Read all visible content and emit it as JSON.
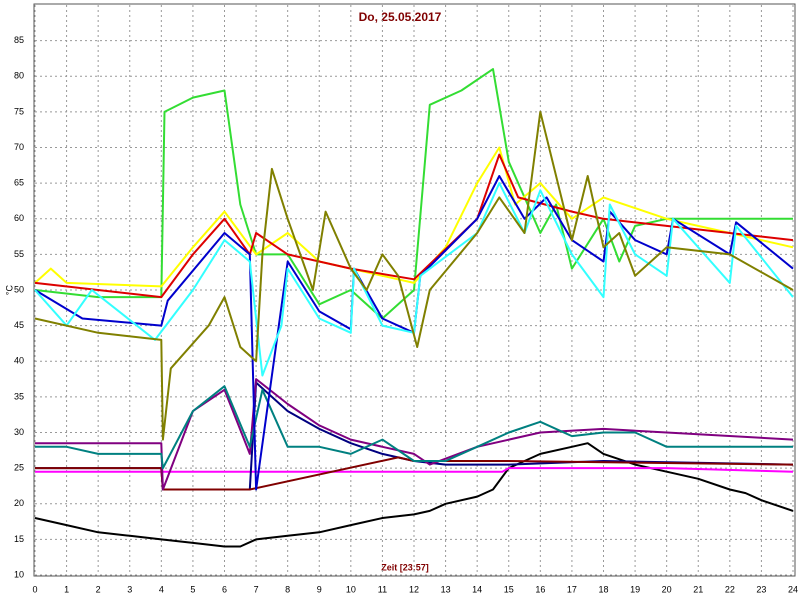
{
  "chart_data": {
    "type": "line",
    "title": "Do, 25.05.2017",
    "x_label": "Zeit [23:57]",
    "y_label": "°C",
    "xlim": [
      0,
      24
    ],
    "xticks": [
      0,
      1,
      2,
      3,
      4,
      5,
      6,
      7,
      8,
      9,
      10,
      11,
      12,
      13,
      14,
      15,
      16,
      17,
      18,
      19,
      20,
      21,
      22,
      23,
      24
    ],
    "ylim": [
      10,
      90
    ],
    "yticks": [
      10,
      15,
      20,
      25,
      30,
      35,
      40,
      45,
      50,
      55,
      60,
      65,
      70,
      75,
      80,
      85
    ],
    "grid": true,
    "series": [
      {
        "color": "#000000",
        "x": [
          0,
          1,
          2,
          3,
          4,
          5,
          6,
          6.5,
          7,
          8,
          9,
          10,
          11,
          12,
          12.5,
          13,
          14,
          14.5,
          15,
          16,
          17,
          17.5,
          18,
          19,
          20,
          21,
          22,
          22.5,
          23,
          24
        ],
        "values": [
          18,
          17,
          16,
          15.5,
          15,
          14.5,
          14,
          14,
          15,
          15.5,
          16,
          17,
          18,
          18.5,
          19,
          20,
          21,
          22,
          25,
          27,
          28,
          28.5,
          27,
          25.5,
          24.5,
          23.5,
          22,
          21.5,
          20.5,
          19
        ]
      },
      {
        "color": "#ff00ff",
        "x": [
          0,
          4,
          8,
          12,
          14.8,
          15,
          20,
          24
        ],
        "values": [
          24.5,
          24.5,
          24.5,
          24.5,
          24.5,
          25,
          25,
          24.5
        ]
      },
      {
        "color": "#000080",
        "x": [
          0,
          4,
          4.05,
          6,
          6.8,
          7,
          8,
          9,
          10,
          11,
          12,
          13,
          15,
          18,
          24
        ],
        "values": [
          25,
          25,
          22,
          22,
          22,
          37,
          33,
          30.5,
          28.5,
          27,
          26,
          25.5,
          25.5,
          26,
          25.5
        ]
      },
      {
        "color": "#800000",
        "x": [
          0,
          4,
          4.05,
          6.8,
          11.5,
          12,
          15,
          24
        ],
        "values": [
          25,
          25,
          22,
          22,
          26.5,
          26,
          26,
          25.5
        ]
      },
      {
        "color": "#800080",
        "x": [
          0,
          4,
          4.05,
          5,
          6,
          6.8,
          7,
          8,
          9,
          10,
          11,
          12,
          12.5,
          14,
          16,
          18,
          20,
          24
        ],
        "values": [
          28.5,
          28.5,
          22,
          33,
          36,
          27,
          37.5,
          34,
          31,
          29,
          28,
          27,
          25.5,
          28,
          30,
          30.5,
          30,
          29
        ]
      },
      {
        "color": "#008080",
        "x": [
          0,
          1,
          2,
          4,
          4.05,
          5,
          6,
          6.8,
          7.2,
          8,
          9,
          10,
          11,
          12,
          13,
          14,
          15,
          16,
          17,
          18,
          19,
          20,
          24
        ],
        "values": [
          28,
          28,
          27,
          27,
          25,
          33,
          36.5,
          28,
          36,
          28,
          28,
          27,
          29,
          26,
          26,
          28,
          30,
          31.5,
          29.5,
          30,
          30,
          28,
          28
        ]
      },
      {
        "color": "#33dd33",
        "x": [
          0,
          2,
          4,
          4.1,
          5,
          6,
          6.5,
          7,
          8,
          9,
          10,
          11,
          12,
          12.5,
          13.5,
          14.5,
          15,
          16,
          16.5,
          17,
          18,
          18.5,
          19,
          20,
          24
        ],
        "values": [
          50,
          49,
          49,
          75,
          77,
          78,
          62,
          55,
          55,
          48,
          50,
          46,
          50,
          76,
          78,
          81,
          68,
          58,
          62,
          53,
          60,
          54,
          59,
          60,
          60
        ]
      },
      {
        "color": "#ffff00",
        "x": [
          0,
          0.5,
          1,
          4,
          5,
          6,
          7,
          8,
          9,
          10,
          11,
          12,
          13,
          14,
          14.7,
          15.2,
          16,
          17,
          18,
          20,
          22,
          24
        ],
        "values": [
          51,
          53,
          51,
          50.5,
          56,
          61,
          55,
          58,
          54,
          53,
          52,
          51,
          56,
          65,
          70,
          62,
          65,
          60,
          63,
          60,
          58,
          56
        ]
      },
      {
        "color": "#dd0000",
        "x": [
          0,
          4,
          5,
          6,
          6.8,
          7,
          8,
          10,
          12,
          14,
          14.7,
          15.3,
          17,
          18,
          20,
          24
        ],
        "values": [
          51,
          49,
          55,
          60,
          55,
          58,
          55,
          53,
          51.5,
          60,
          69,
          63,
          61,
          60,
          59,
          57
        ]
      },
      {
        "color": "#0000cc",
        "x": [
          0,
          1.5,
          4,
          4.2,
          6,
          6.8,
          7,
          7.5,
          8,
          9,
          10,
          10.1,
          11,
          12,
          12.2,
          14,
          14.7,
          15.5,
          16.2,
          17,
          18,
          18.2,
          19,
          20,
          20.2,
          22,
          22.2,
          24
        ],
        "values": [
          50,
          46,
          45,
          48.5,
          58,
          55,
          22,
          38,
          54,
          47,
          44.5,
          53,
          46,
          44,
          52,
          60,
          66,
          60,
          63,
          57,
          54,
          61,
          57,
          55,
          60,
          55,
          59.5,
          53
        ]
      },
      {
        "color": "#33ffff",
        "x": [
          0,
          1,
          1.8,
          3.8,
          5,
          6,
          6.8,
          7.2,
          7.8,
          8,
          9,
          10,
          10.1,
          11,
          12,
          12.2,
          14,
          14.7,
          15.5,
          16,
          17,
          18,
          18.2,
          19,
          20,
          20.2,
          22,
          22.2,
          24
        ],
        "values": [
          50,
          45,
          50,
          43,
          50,
          57,
          54,
          38,
          45,
          53,
          46,
          44,
          53,
          45,
          44,
          52,
          58,
          65,
          58,
          64,
          55,
          49,
          62,
          55,
          52,
          60,
          51,
          59,
          49
        ]
      },
      {
        "color": "#808000",
        "x": [
          0,
          2,
          4,
          4.05,
          4.3,
          5.5,
          6,
          6.5,
          7,
          7.2,
          7.5,
          8,
          8.8,
          9.2,
          10,
          10.5,
          11,
          11.5,
          12.1,
          12.5,
          14,
          14.7,
          15.5,
          16,
          17,
          17.5,
          18,
          18.5,
          19,
          20,
          22,
          24
        ],
        "values": [
          46,
          44,
          43,
          29,
          39,
          45,
          49,
          42,
          40,
          55,
          67,
          60,
          50,
          61,
          53,
          50,
          55,
          52,
          42,
          50,
          58,
          63,
          58,
          75,
          57,
          66,
          56,
          58,
          52,
          56,
          55,
          50
        ]
      }
    ]
  }
}
